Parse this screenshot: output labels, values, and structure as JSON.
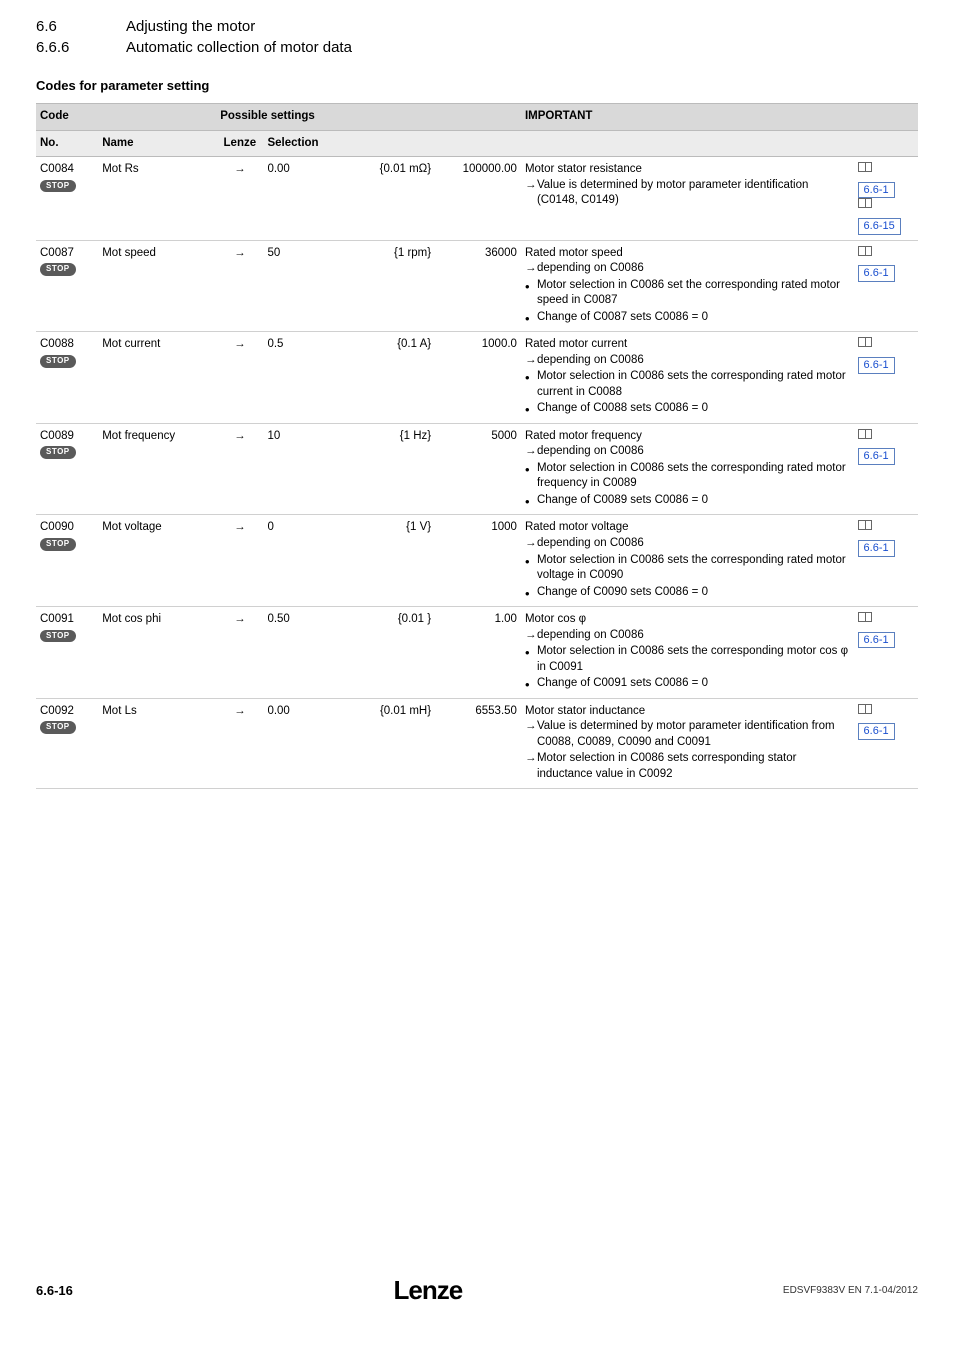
{
  "header": {
    "num1": "6.6",
    "text1": "Adjusting the motor",
    "num2": "6.6.6",
    "text2": "Automatic collection of motor data"
  },
  "section_title": "Codes for parameter setting",
  "table": {
    "head1": {
      "code": "Code",
      "possible": "Possible settings",
      "important": "IMPORTANT"
    },
    "head2": {
      "no": "No.",
      "name": "Name",
      "lenze": "Lenze",
      "selection": "Selection"
    },
    "rows": [
      {
        "no": "C0084",
        "stop": "STOP",
        "name": "Mot Rs",
        "lenze": "→",
        "sel1": "0.00",
        "sel2": "{0.01 mΩ}",
        "sel3": "100000.00",
        "imp_title": "Motor stator resistance",
        "imp_items": [
          {
            "type": "arrow",
            "text": "Value is determined by motor parameter identification (C0148, C0149)"
          }
        ],
        "refs": [
          "6.6-1",
          "6.6-15"
        ]
      },
      {
        "no": "C0087",
        "stop": "STOP",
        "name": "Mot speed",
        "lenze": "→",
        "sel1": "50",
        "sel2": "{1 rpm}",
        "sel3": "36000",
        "imp_title": "Rated motor speed",
        "imp_items": [
          {
            "type": "arrow",
            "text": "depending on C0086"
          },
          {
            "type": "bullet",
            "text": "Motor selection in C0086 set the corresponding rated motor speed in C0087"
          },
          {
            "type": "bullet",
            "text": "Change of C0087 sets C0086 = 0"
          }
        ],
        "refs": [
          "6.6-1"
        ]
      },
      {
        "no": "C0088",
        "stop": "STOP",
        "name": "Mot current",
        "lenze": "→",
        "sel1": "0.5",
        "sel2": "{0.1 A}",
        "sel3": "1000.0",
        "imp_title": "Rated motor current",
        "imp_items": [
          {
            "type": "arrow",
            "text": "depending on C0086"
          },
          {
            "type": "bullet",
            "text": "Motor selection in C0086 sets the corresponding rated motor current in C0088"
          },
          {
            "type": "bullet",
            "text": "Change of C0088 sets C0086 = 0"
          }
        ],
        "refs": [
          "6.6-1"
        ]
      },
      {
        "no": "C0089",
        "stop": "STOP",
        "name": "Mot frequency",
        "lenze": "→",
        "sel1": "10",
        "sel2": "{1 Hz}",
        "sel3": "5000",
        "imp_title": "Rated motor frequency",
        "imp_items": [
          {
            "type": "arrow",
            "text": "depending on C0086"
          },
          {
            "type": "bullet",
            "text": "Motor selection in C0086 sets the corresponding rated motor frequency in C0089"
          },
          {
            "type": "bullet",
            "text": "Change of C0089 sets C0086 = 0"
          }
        ],
        "refs": [
          "6.6-1"
        ]
      },
      {
        "no": "C0090",
        "stop": "STOP",
        "name": "Mot voltage",
        "lenze": "→",
        "sel1": "0",
        "sel2": "{1 V}",
        "sel3": "1000",
        "imp_title": "Rated motor voltage",
        "imp_items": [
          {
            "type": "arrow",
            "text": "depending on C0086"
          },
          {
            "type": "bullet",
            "text": "Motor selection in C0086 sets the corresponding rated motor voltage in C0090"
          },
          {
            "type": "bullet",
            "text": "Change of C0090 sets C0086 = 0"
          }
        ],
        "refs": [
          "6.6-1"
        ]
      },
      {
        "no": "C0091",
        "stop": "STOP",
        "name": "Mot cos phi",
        "lenze": "→",
        "sel1": "0.50",
        "sel2": "{0.01 }",
        "sel3": "1.00",
        "imp_title": "Motor cos φ",
        "imp_items": [
          {
            "type": "arrow",
            "text": "depending on C0086"
          },
          {
            "type": "bullet",
            "text": "Motor selection in C0086 sets the corresponding motor cos φ in C0091"
          },
          {
            "type": "bullet",
            "text": "Change of C0091 sets C0086 = 0"
          }
        ],
        "refs": [
          "6.6-1"
        ]
      },
      {
        "no": "C0092",
        "stop": "STOP",
        "name": "Mot Ls",
        "lenze": "→",
        "sel1": "0.00",
        "sel2": "{0.01 mH}",
        "sel3": "6553.50",
        "imp_title": "Motor stator inductance",
        "imp_items": [
          {
            "type": "arrow",
            "text": "Value is determined by motor parameter identification from C0088, C0089, C0090 and C0091"
          },
          {
            "type": "arrow",
            "text": "Motor selection in C0086 sets corresponding stator inductance value in C0092"
          }
        ],
        "refs": [
          "6.6-1"
        ]
      }
    ]
  },
  "footer": {
    "page": "6.6-16",
    "brand": "Lenze",
    "doc": "EDSVF9383V EN 7.1-04/2012"
  },
  "colors": {
    "hdr1_bg": "#d9d9d9",
    "hdr2_bg": "#ececec",
    "row_border": "#d0d0d0",
    "link_border": "#5a7fbf",
    "link_text": "#1a4fcf",
    "stop_bg": "#5a5a5a"
  }
}
